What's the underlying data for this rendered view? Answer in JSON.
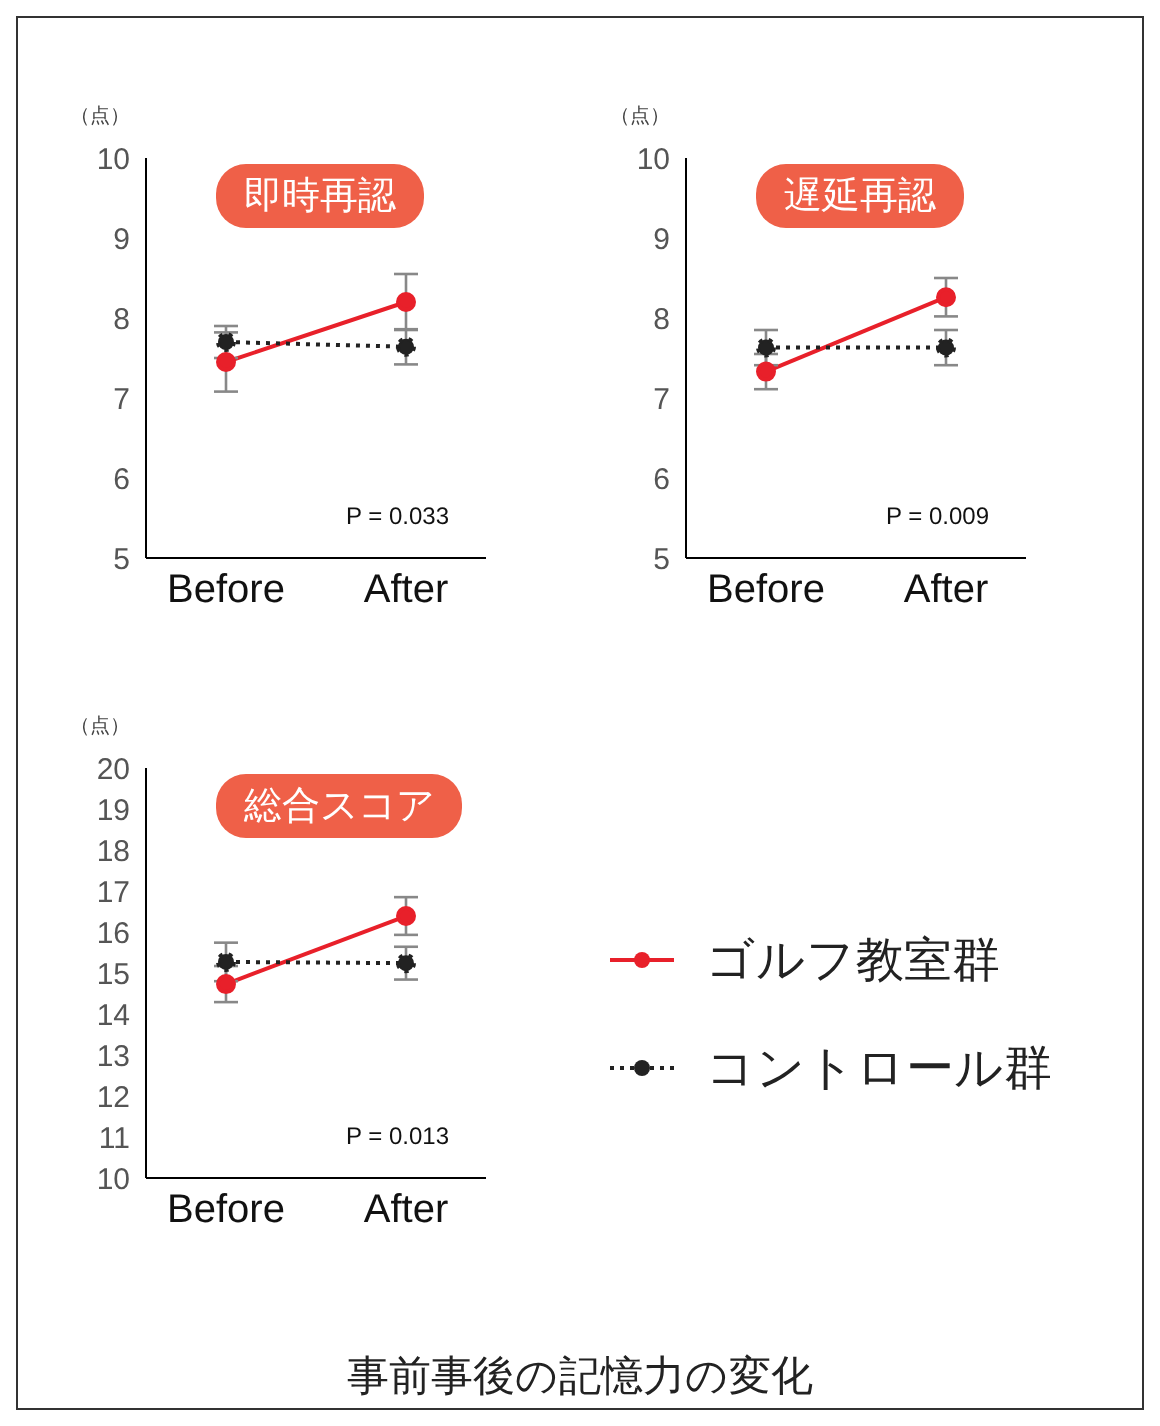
{
  "chart_data": [
    {
      "type": "line",
      "title": "即時再認",
      "ylabel": "（点）",
      "categories": [
        "Before",
        "After"
      ],
      "ylim": [
        5,
        10
      ],
      "yticks": [
        5,
        6,
        7,
        8,
        9,
        10
      ],
      "legend": false,
      "marker": "circle",
      "annotations": [
        "P = 0.033"
      ],
      "series": [
        {
          "color": "#e8202a",
          "line_style": "solid",
          "values": [
            7.45,
            8.2
          ],
          "errors": [
            0.37,
            0.35
          ]
        },
        {
          "color": "#222222",
          "line_style": "dotted",
          "values": [
            7.7,
            7.64
          ],
          "errors": [
            0.2,
            0.22
          ]
        }
      ]
    },
    {
      "type": "line",
      "title": "遅延再認",
      "ylabel": "（点）",
      "categories": [
        "Before",
        "After"
      ],
      "ylim": [
        5,
        10
      ],
      "yticks": [
        5,
        6,
        7,
        8,
        9,
        10
      ],
      "legend": false,
      "marker": "circle",
      "annotations": [
        "P = 0.009"
      ],
      "series": [
        {
          "color": "#e8202a",
          "line_style": "solid",
          "values": [
            7.33,
            8.26
          ],
          "errors": [
            0.22,
            0.24
          ]
        },
        {
          "color": "#222222",
          "line_style": "dotted",
          "values": [
            7.63,
            7.63
          ],
          "errors": [
            0.22,
            0.22
          ]
        }
      ]
    },
    {
      "type": "line",
      "title": "総合スコア",
      "ylabel": "（点）",
      "categories": [
        "Before",
        "After"
      ],
      "ylim": [
        10,
        20
      ],
      "yticks": [
        10,
        11,
        12,
        13,
        14,
        15,
        16,
        17,
        18,
        19,
        20
      ],
      "legend": "right",
      "marker": "circle",
      "annotations": [
        "P = 0.013",
        "事前事後の記憶力の変化"
      ],
      "series": [
        {
          "name": "ゴルフ教室群",
          "color": "#e8202a",
          "line_style": "solid",
          "values": [
            14.73,
            16.39
          ],
          "errors": [
            0.44,
            0.46
          ]
        },
        {
          "name": "コントロール群",
          "color": "#222222",
          "line_style": "dotted",
          "values": [
            15.27,
            15.24
          ],
          "errors": [
            0.47,
            0.4
          ]
        }
      ]
    }
  ]
}
